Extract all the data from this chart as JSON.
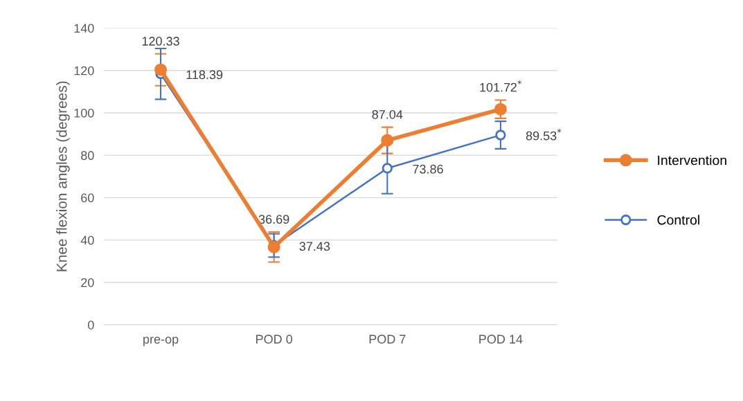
{
  "chart_data": {
    "type": "line",
    "ylabel": "Knee flexion angles (degrees)",
    "categories": [
      "pre-op",
      "POD 0",
      "POD 7",
      "POD 14"
    ],
    "series": [
      {
        "name": "Intervention",
        "color": "#ed7d31",
        "values": [
          120.33,
          36.69,
          87.04,
          101.72
        ],
        "errors": [
          7.5,
          7.1,
          6.2,
          4.3
        ],
        "value_labels": [
          "120.33",
          "36.69",
          "87.04",
          "101.72$^{*}$"
        ]
      },
      {
        "name": "Control",
        "color": "#4472c4",
        "values": [
          118.39,
          37.43,
          73.86,
          89.53
        ],
        "errors": [
          12,
          5.5,
          12,
          6.5
        ],
        "value_labels": [
          "118.39",
          "37.43",
          "73.86",
          "89.53$^{*}$"
        ]
      }
    ],
    "ylim": [
      0,
      140
    ],
    "yticks": [
      0,
      20,
      40,
      60,
      80,
      100,
      120,
      140
    ],
    "grid": "y",
    "legend": "right",
    "marker": "circle",
    "line_style": "solid"
  }
}
